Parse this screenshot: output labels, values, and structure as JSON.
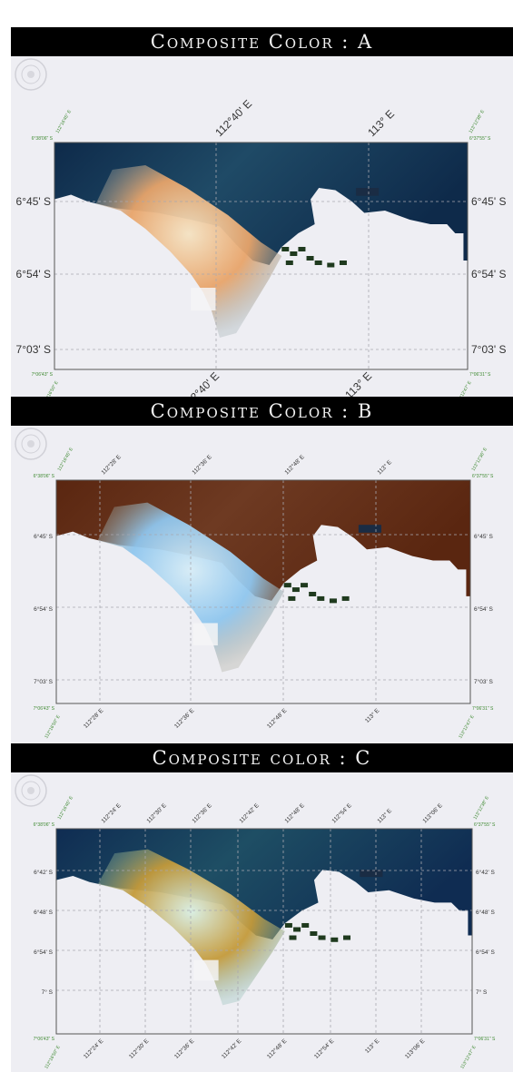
{
  "panels": [
    {
      "title": "Composite Color : A",
      "colors": {
        "sea": "#0e2a4a",
        "sea_mid": "#1f4a66",
        "plume": "#e8a46a",
        "plume_light": "#f4e2c2",
        "haze": "#8fa0a3"
      },
      "corner_labels": {
        "tl_lon": "112°16'45\" E",
        "tl_lat": "6°38'06\" S",
        "tr_lon": "113°12'38\" E",
        "tr_lat": "6°37'55\" S",
        "bl_lon": "112°16'50\" E",
        "bl_lat": "7°06'43\" S",
        "br_lon": "113°12'47\" E",
        "br_lat": "7°06'31\" S"
      },
      "lon_labels": [
        "112°40' E",
        "113° E"
      ],
      "lat_labels": [
        "6°45' S",
        "6°54' S",
        "7°03' S"
      ]
    },
    {
      "title": "Composite Color : B",
      "colors": {
        "sea": "#5a2610",
        "sea_mid": "#6e3a22",
        "plume": "#8fc6ee",
        "plume_light": "#d6ecf6",
        "haze": "#9b9a8a"
      },
      "corner_labels": {
        "tl_lon": "112°16'45\" E",
        "tl_lat": "6°38'06\" S",
        "tr_lon": "113°12'36\" E",
        "tr_lat": "6°37'55\" S",
        "bl_lon": "112°16'50\" E",
        "bl_lat": "7°06'43\" S",
        "br_lon": "113°12'47\" E",
        "br_lat": "7°06'31\" S"
      },
      "lon_labels": [
        "112°28' E",
        "112°36' E",
        "112°48' E",
        "113° E"
      ],
      "lat_labels": [
        "6°45' S",
        "6°54' S",
        "7°03' S"
      ]
    },
    {
      "title": "Composite color : C",
      "colors": {
        "sea": "#0f2c52",
        "sea_mid": "#1e4e64",
        "plume": "#c49a3a",
        "plume_light": "#d8eee2",
        "haze": "#7fb2a8"
      },
      "corner_labels": {
        "tl_lon": "112°16'45\" E",
        "tl_lat": "6°38'06\" S",
        "tr_lon": "113°12'38\" E",
        "tr_lat": "6°37'55\" S",
        "bl_lon": "112°16'50\" E",
        "bl_lat": "7°06'43\" S",
        "br_lon": "113°12'47\" E",
        "br_lat": "7°06'31\" S"
      },
      "lon_labels": [
        "112°24' E",
        "112°30' E",
        "112°36' E",
        "112°42' E",
        "112°48' E",
        "112°54' E",
        "113° E",
        "113°06' E"
      ],
      "lat_labels": [
        "6°42' S",
        "6°48' S",
        "6°54' S",
        "7° S"
      ]
    }
  ]
}
